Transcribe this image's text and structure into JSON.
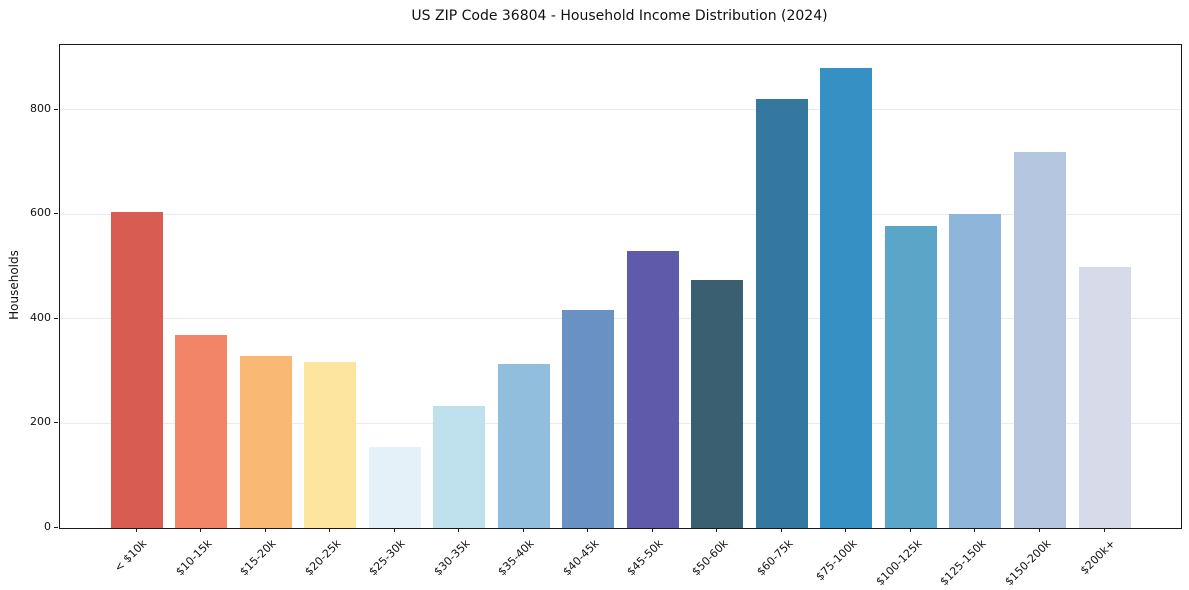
{
  "title": "US ZIP Code 36804 - Household Income Distribution (2024)",
  "y_axis_label": "Households",
  "chart_data": {
    "type": "bar",
    "title": "US ZIP Code 36804 - Household Income Distribution (2024)",
    "xlabel": "",
    "ylabel": "Households",
    "categories": [
      "< $10k",
      "$10-15k",
      "$15-20k",
      "$20-25k",
      "$25-30k",
      "$30-35k",
      "$35-40k",
      "$40-45k",
      "$45-50k",
      "$50-60k",
      "$60-75k",
      "$75-100k",
      "$100-125k",
      "$125-150k",
      "$150-200k",
      "$200k+"
    ],
    "values": [
      605,
      370,
      329,
      318,
      155,
      234,
      313,
      418,
      530,
      474,
      820,
      880,
      578,
      600,
      720,
      500
    ],
    "bar_colors": [
      "#d95c53",
      "#f28468",
      "#fab875",
      "#fde5a0",
      "#e5f1f8",
      "#bfe0ed",
      "#92bedd",
      "#6991c4",
      "#5d5baa",
      "#3a5f71",
      "#35789f",
      "#3690c3",
      "#5ba5c9",
      "#8eb6da",
      "#b5c7e0",
      "#d7dae8"
    ],
    "ylim": [
      0,
      924
    ],
    "yticks": [
      0,
      200,
      400,
      600,
      800
    ],
    "grid": "horizontal",
    "grid_color": "#ebebef",
    "legend": "none"
  }
}
